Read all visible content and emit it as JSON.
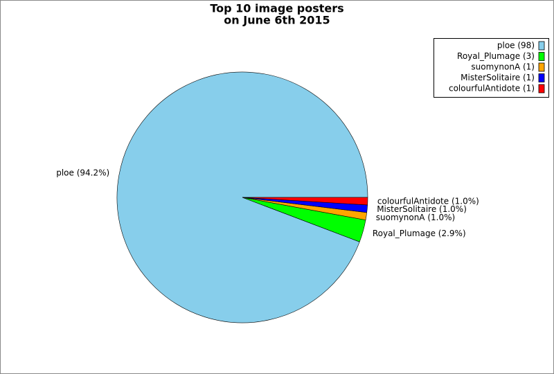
{
  "chart_data": {
    "type": "pie",
    "title": [
      "Top 10 image posters",
      "on June 6th 2015"
    ],
    "categories": [
      "ploe",
      "Royal_Plumage",
      "suomynonA",
      "MisterSolitaire",
      "colourfulAntidote"
    ],
    "values": [
      98,
      3,
      1,
      1,
      1
    ],
    "legend_labels": [
      "ploe (98)",
      "Royal_Plumage (3)",
      "suomynonA (1)",
      "MisterSolitaire (1)",
      "colourfulAntidote (1)"
    ],
    "value_labels": [
      "ploe (94.2%)",
      "Royal_Plumage (2.9%)",
      "suomynonA (1.0%)",
      "MisterSolitaire (1.0%)",
      "colourfulAntidote (1.0%)"
    ],
    "colors": [
      "#87ceeb",
      "#00ff00",
      "#ffa500",
      "#0000ff",
      "#ff0000"
    ],
    "legend_position": "upper right"
  }
}
